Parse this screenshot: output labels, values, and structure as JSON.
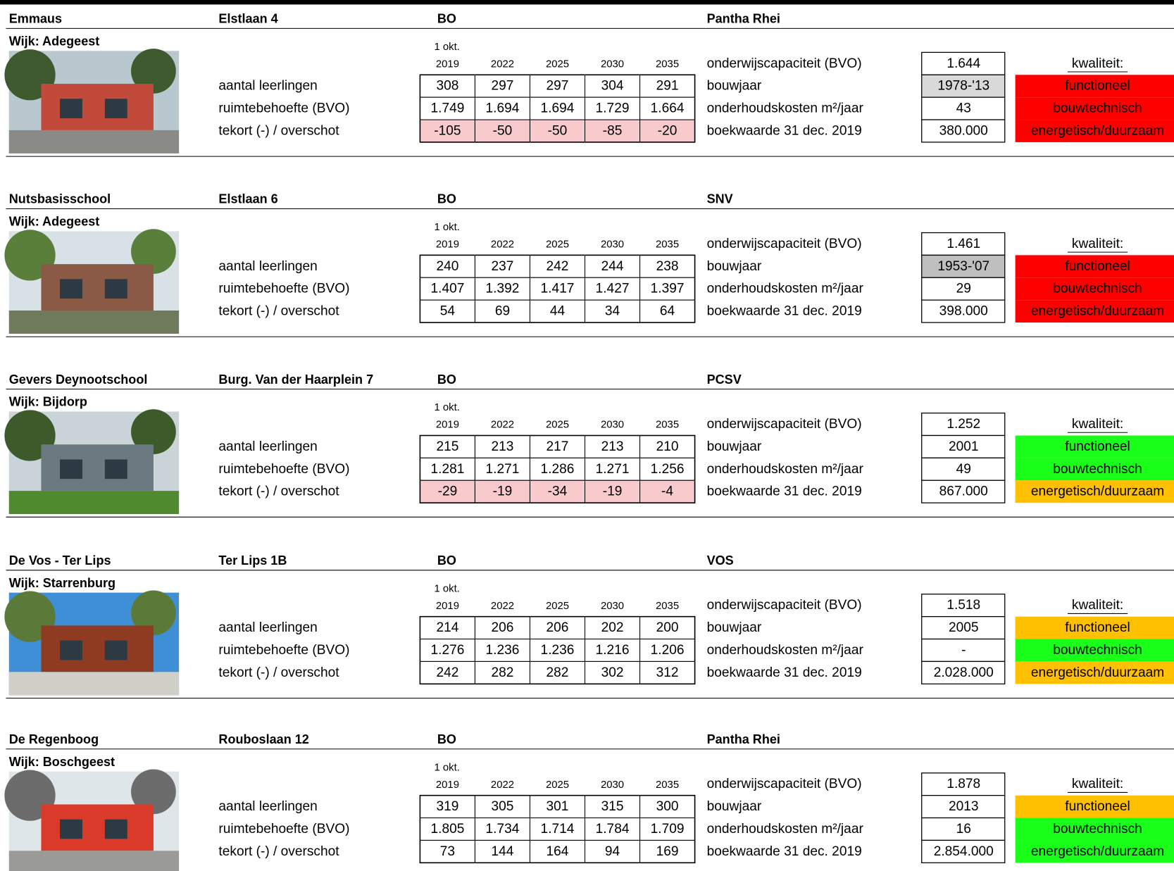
{
  "labels": {
    "year_note": "1 okt.",
    "years": [
      "2019",
      "2022",
      "2025",
      "2030",
      "2035"
    ],
    "rows": [
      "aantal leerlingen",
      "ruimtebehoefte (BVO)",
      "tekort (-) / overschot"
    ],
    "properties": [
      "onderwijscapaciteit (BVO)",
      "bouwjaar",
      "onderhoudskosten m²/jaar",
      "boekwaarde 31 dec. 2019"
    ],
    "quality_title": "kwaliteit:",
    "quality_items": [
      "functioneel",
      "bouwtechnisch",
      "energetisch/duurzaam"
    ]
  },
  "colors": {
    "shortfall_fill": "#f8c9cd",
    "shortfall_text": "#c00000"
  },
  "schools": [
    {
      "name": "Emmaus",
      "address": "Elstlaan 4",
      "type": "BO",
      "board": "Pantha Rhei",
      "wijk": "Wijk: Adegeest",
      "table": [
        [
          "308",
          "297",
          "297",
          "304",
          "291"
        ],
        [
          "1.749",
          "1.694",
          "1.694",
          "1.729",
          "1.664"
        ],
        [
          "-105",
          "-50",
          "-50",
          "-85",
          "-20"
        ]
      ],
      "shortfall_highlight": true,
      "properties": [
        "1.644",
        "1978-'13",
        "43",
        "380.000"
      ],
      "bouwjaar_fill": "#d9d9d9",
      "quality_colors": [
        "#ff0000",
        "#ff0000",
        "#ff0000"
      ],
      "quality_text_colors": [
        "#b00000",
        "#b00000",
        "#b00000"
      ]
    },
    {
      "name": "Nutsbasisschool",
      "address": "Elstlaan 6",
      "type": "BO",
      "board": "SNV",
      "wijk": "Wijk: Adegeest",
      "table": [
        [
          "240",
          "237",
          "242",
          "244",
          "238"
        ],
        [
          "1.407",
          "1.392",
          "1.417",
          "1.427",
          "1.397"
        ],
        [
          "54",
          "69",
          "44",
          "34",
          "64"
        ]
      ],
      "shortfall_highlight": false,
      "properties": [
        "1.461",
        "1953-'07",
        "29",
        "398.000"
      ],
      "bouwjaar_fill": "#bfbfbf",
      "quality_colors": [
        "#ff0000",
        "#ff0000",
        "#ff0000"
      ],
      "quality_text_colors": [
        "#b00000",
        "#b00000",
        "#b00000"
      ]
    },
    {
      "name": "Gevers Deynootschool",
      "address": "Burg. Van der Haarplein 7",
      "type": "BO",
      "board": "PCSV",
      "wijk": "Wijk: Bijdorp",
      "table": [
        [
          "215",
          "213",
          "217",
          "213",
          "210"
        ],
        [
          "1.281",
          "1.271",
          "1.286",
          "1.271",
          "1.256"
        ],
        [
          "-29",
          "-19",
          "-34",
          "-19",
          "-4"
        ]
      ],
      "shortfall_highlight": true,
      "properties": [
        "1.252",
        "2001",
        "49",
        "867.000"
      ],
      "bouwjaar_fill": "#ffffff",
      "quality_colors": [
        "#1aff1a",
        "#1aff1a",
        "#ffc000"
      ],
      "quality_text_colors": [
        "#000000",
        "#000000",
        "#000000"
      ]
    },
    {
      "name": "De Vos - Ter Lips",
      "address": "Ter Lips 1B",
      "type": "BO",
      "board": "VOS",
      "wijk": "Wijk: Starrenburg",
      "table": [
        [
          "214",
          "206",
          "206",
          "202",
          "200"
        ],
        [
          "1.276",
          "1.236",
          "1.236",
          "1.216",
          "1.206"
        ],
        [
          "242",
          "282",
          "282",
          "302",
          "312"
        ]
      ],
      "shortfall_highlight": false,
      "properties": [
        "1.518",
        "2005",
        "-",
        "2.028.000"
      ],
      "bouwjaar_fill": "#ffffff",
      "quality_colors": [
        "#ffc000",
        "#1aff1a",
        "#ffc000"
      ],
      "quality_text_colors": [
        "#000000",
        "#000000",
        "#000000"
      ]
    },
    {
      "name": "De Regenboog",
      "address": "Rouboslaan 12",
      "type": "BO",
      "board": "Pantha Rhei",
      "wijk": "Wijk: Boschgeest",
      "table": [
        [
          "319",
          "305",
          "301",
          "315",
          "300"
        ],
        [
          "1.805",
          "1.734",
          "1.714",
          "1.784",
          "1.709"
        ],
        [
          "73",
          "144",
          "164",
          "94",
          "169"
        ]
      ],
      "shortfall_highlight": false,
      "properties": [
        "1.878",
        "2013",
        "16",
        "2.854.000"
      ],
      "bouwjaar_fill": "#ffffff",
      "quality_colors": [
        "#ffc000",
        "#1aff1a",
        "#1aff1a"
      ],
      "quality_text_colors": [
        "#000000",
        "#000000",
        "#000000"
      ]
    }
  ]
}
